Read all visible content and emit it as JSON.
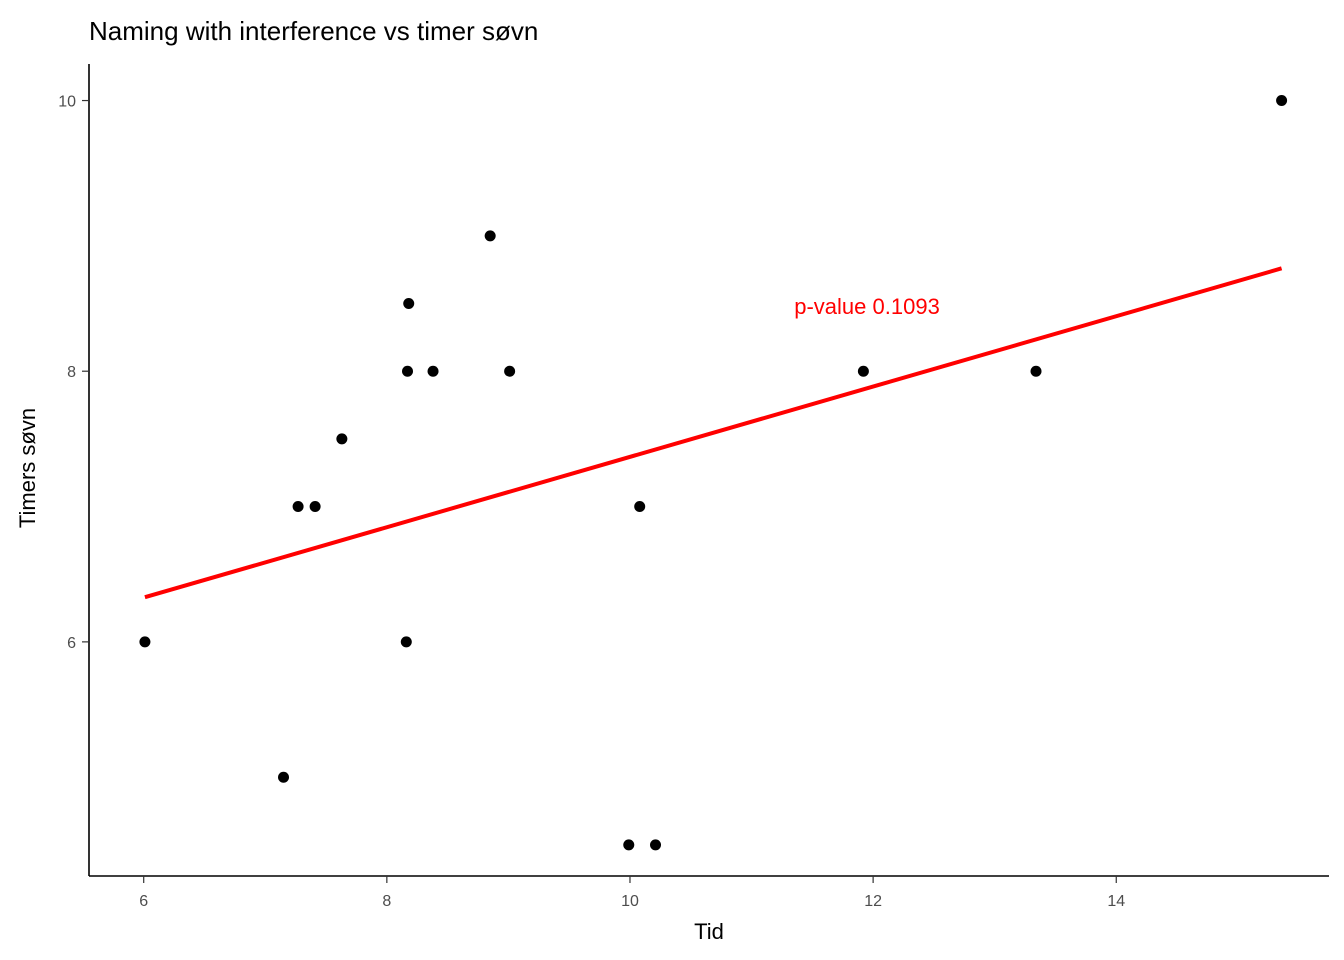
{
  "chart_data": {
    "type": "scatter",
    "title": "Naming with interference vs timer søvn",
    "xlabel": "Tid",
    "ylabel": "Timers søvn",
    "xlim": [
      5.55,
      15.75
    ],
    "ylim": [
      4.27,
      10.27
    ],
    "xticks": [
      6,
      8,
      10,
      12,
      14
    ],
    "yticks": [
      6,
      8,
      10
    ],
    "xtick_labels": [
      "6",
      "8",
      "10",
      "12",
      "14"
    ],
    "ytick_labels": [
      "6",
      "8",
      "10"
    ],
    "grid": false,
    "points": [
      {
        "x": 6.01,
        "y": 6
      },
      {
        "x": 7.15,
        "y": 5
      },
      {
        "x": 7.27,
        "y": 7
      },
      {
        "x": 7.41,
        "y": 7
      },
      {
        "x": 7.63,
        "y": 7.5
      },
      {
        "x": 8.16,
        "y": 6
      },
      {
        "x": 8.17,
        "y": 8
      },
      {
        "x": 8.18,
        "y": 8.5
      },
      {
        "x": 8.38,
        "y": 8
      },
      {
        "x": 8.85,
        "y": 9
      },
      {
        "x": 9.01,
        "y": 8
      },
      {
        "x": 9.99,
        "y": 4.5
      },
      {
        "x": 10.08,
        "y": 7
      },
      {
        "x": 10.21,
        "y": 4.5
      },
      {
        "x": 11.92,
        "y": 8
      },
      {
        "x": 13.34,
        "y": 8
      },
      {
        "x": 15.36,
        "y": 10
      }
    ],
    "fit_line": {
      "color": "#ff0000",
      "points": [
        {
          "x": 6.01,
          "y": 6.33
        },
        {
          "x": 15.36,
          "y": 8.76
        }
      ]
    },
    "annotation": {
      "text": "p-value 0.1093",
      "x": 11.95,
      "y": 8.48,
      "color": "#ff0000"
    },
    "point_color": "#000000"
  }
}
